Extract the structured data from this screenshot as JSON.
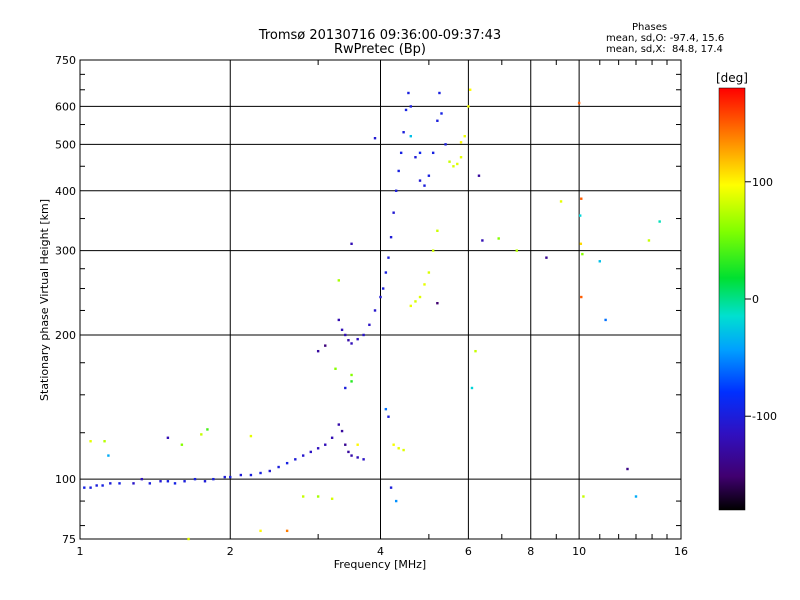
{
  "header": {
    "title_line1": "Tromsø 20130716 09:36:00-09:37:43",
    "title_line2": "RwPretec (Bp)",
    "phases_title": "Phases",
    "phases_line1": "mean, sd,O: -97.4, 15.6",
    "phases_line2": "mean, sd,X:  84.8, 17.4"
  },
  "colorbar": {
    "unit": "[deg]",
    "ticks": [
      "100",
      "0",
      "-100"
    ],
    "tick_values": [
      100,
      0,
      -100
    ],
    "range": [
      -180,
      180
    ]
  },
  "chart_data": {
    "type": "scatter",
    "xlabel": "Frequency [MHz]",
    "ylabel": "Stationary phase Virtual Height [km]",
    "x_scale": "log",
    "y_scale": "log",
    "xlim": [
      1,
      16
    ],
    "ylim": [
      75,
      750
    ],
    "x_ticks": [
      1,
      2,
      4,
      6,
      8,
      10,
      16
    ],
    "x_tick_labels": [
      "1",
      "2",
      "4",
      "6",
      "8",
      "10",
      "16"
    ],
    "y_ticks": [
      75,
      100,
      200,
      300,
      400,
      500,
      600,
      750
    ],
    "y_tick_labels": [
      "75",
      "100",
      "200",
      "300",
      "400",
      "500",
      "600",
      "750"
    ],
    "grid": true,
    "color_variable": "phase [deg]",
    "series": [
      {
        "note": "O-mode trace",
        "points": [
          [
            1.02,
            96,
            -95
          ],
          [
            1.05,
            96,
            -98
          ],
          [
            1.08,
            97,
            -100
          ],
          [
            1.11,
            97,
            -97
          ],
          [
            1.15,
            98,
            -102
          ],
          [
            1.2,
            98,
            -96
          ],
          [
            1.28,
            98,
            -110
          ],
          [
            1.33,
            100,
            -115
          ],
          [
            1.38,
            98,
            -100
          ],
          [
            1.45,
            99,
            -105
          ],
          [
            1.5,
            99,
            -98
          ],
          [
            1.55,
            98,
            -95
          ],
          [
            1.62,
            99,
            -100
          ],
          [
            1.7,
            100,
            -97
          ],
          [
            1.78,
            99,
            -102
          ],
          [
            1.85,
            100,
            -98
          ],
          [
            1.95,
            101,
            -101
          ],
          [
            2.0,
            101,
            -99
          ],
          [
            2.1,
            102,
            -103
          ],
          [
            2.2,
            102,
            -100
          ],
          [
            2.3,
            103,
            -98
          ],
          [
            2.4,
            104,
            -105
          ],
          [
            2.5,
            106,
            -100
          ],
          [
            2.6,
            108,
            -96
          ],
          [
            2.7,
            110,
            -102
          ],
          [
            2.8,
            112,
            -108
          ],
          [
            2.9,
            114,
            -112
          ],
          [
            3.0,
            116,
            -115
          ],
          [
            3.1,
            118,
            -118
          ],
          [
            3.2,
            122,
            -120
          ],
          [
            3.3,
            130,
            -125
          ],
          [
            3.35,
            126,
            -130
          ],
          [
            3.4,
            118,
            -135
          ],
          [
            3.45,
            114,
            -130
          ],
          [
            3.5,
            112,
            -125
          ],
          [
            3.6,
            111,
            -118
          ],
          [
            3.7,
            110,
            -112
          ],
          [
            3.3,
            215,
            -122
          ],
          [
            3.35,
            205,
            -118
          ],
          [
            3.4,
            200,
            -120
          ],
          [
            3.45,
            195,
            -125
          ],
          [
            3.5,
            192,
            -118
          ],
          [
            3.6,
            196,
            -115
          ],
          [
            3.7,
            200,
            -110
          ],
          [
            3.8,
            210,
            -112
          ],
          [
            3.9,
            225,
            -108
          ],
          [
            4.0,
            240,
            -105
          ],
          [
            4.05,
            250,
            -100
          ],
          [
            4.1,
            270,
            -98
          ],
          [
            4.15,
            290,
            -100
          ],
          [
            4.2,
            320,
            -102
          ],
          [
            4.25,
            360,
            -105
          ],
          [
            4.3,
            400,
            -100
          ],
          [
            4.35,
            440,
            -98
          ],
          [
            4.4,
            480,
            -96
          ],
          [
            4.45,
            530,
            -100
          ],
          [
            4.5,
            590,
            -95
          ],
          [
            4.55,
            640,
            -98
          ],
          [
            4.6,
            600,
            -100
          ],
          [
            4.7,
            470,
            -102
          ],
          [
            4.8,
            420,
            -105
          ],
          [
            4.9,
            410,
            -100
          ],
          [
            5.0,
            430,
            -98
          ],
          [
            5.1,
            480,
            -96
          ],
          [
            5.2,
            560,
            -100
          ],
          [
            5.25,
            640,
            -98
          ],
          [
            5.3,
            580,
            -95
          ],
          [
            5.4,
            500,
            -100
          ]
        ]
      },
      {
        "note": "X-mode trace",
        "points": [
          [
            4.25,
            118,
            95
          ],
          [
            4.35,
            116,
            90
          ],
          [
            4.45,
            115,
            88
          ],
          [
            4.6,
            230,
            92
          ],
          [
            4.7,
            235,
            85
          ],
          [
            4.8,
            240,
            88
          ],
          [
            4.9,
            255,
            90
          ],
          [
            5.0,
            270,
            86
          ],
          [
            5.1,
            300,
            84
          ],
          [
            5.2,
            330,
            82
          ],
          [
            5.5,
            460,
            80
          ],
          [
            5.6,
            450,
            85
          ],
          [
            5.7,
            455,
            88
          ],
          [
            5.8,
            470,
            90
          ],
          [
            5.9,
            520,
            92
          ],
          [
            6.0,
            600,
            95
          ],
          [
            6.05,
            650,
            98
          ]
        ]
      },
      {
        "note": "scattered echoes",
        "points": [
          [
            1.05,
            120,
            90
          ],
          [
            1.12,
            120,
            75
          ],
          [
            1.14,
            112,
            -40
          ],
          [
            1.5,
            122,
            -120
          ],
          [
            1.6,
            118,
            60
          ],
          [
            1.75,
            124,
            80
          ],
          [
            1.8,
            127,
            40
          ],
          [
            1.65,
            75,
            90
          ],
          [
            2.2,
            123,
            90
          ],
          [
            2.3,
            78,
            100
          ],
          [
            2.6,
            78,
            140
          ],
          [
            2.8,
            92,
            80
          ],
          [
            3.0,
            92,
            70
          ],
          [
            3.2,
            91,
            85
          ],
          [
            3.6,
            118,
            100
          ],
          [
            3.0,
            185,
            -130
          ],
          [
            3.1,
            190,
            -145
          ],
          [
            3.25,
            170,
            60
          ],
          [
            3.5,
            160,
            30
          ],
          [
            3.4,
            155,
            -100
          ],
          [
            3.5,
            165,
            60
          ],
          [
            3.3,
            260,
            70
          ],
          [
            3.5,
            310,
            -120
          ],
          [
            3.9,
            515,
            -105
          ],
          [
            4.1,
            140,
            -60
          ],
          [
            4.15,
            135,
            -100
          ],
          [
            4.2,
            96,
            -100
          ],
          [
            4.3,
            90,
            -50
          ],
          [
            4.6,
            520,
            -30
          ],
          [
            4.8,
            480,
            -90
          ],
          [
            5.2,
            233,
            -150
          ],
          [
            5.8,
            505,
            100
          ],
          [
            6.1,
            155,
            -20
          ],
          [
            6.2,
            185,
            80
          ],
          [
            6.3,
            430,
            -130
          ],
          [
            6.4,
            315,
            -120
          ],
          [
            6.9,
            318,
            60
          ],
          [
            7.5,
            300,
            75
          ],
          [
            8.6,
            290,
            -135
          ],
          [
            9.2,
            380,
            90
          ],
          [
            10.0,
            610,
            150
          ],
          [
            10.1,
            385,
            150
          ],
          [
            10.05,
            355,
            -20
          ],
          [
            10.08,
            310,
            110
          ],
          [
            10.15,
            295,
            60
          ],
          [
            10.1,
            240,
            150
          ],
          [
            10.2,
            92,
            80
          ],
          [
            11.0,
            285,
            -30
          ],
          [
            11.3,
            215,
            -60
          ],
          [
            12.5,
            105,
            -140
          ],
          [
            13.0,
            92,
            -40
          ],
          [
            13.8,
            315,
            80
          ],
          [
            14.5,
            345,
            -10
          ]
        ]
      }
    ]
  }
}
